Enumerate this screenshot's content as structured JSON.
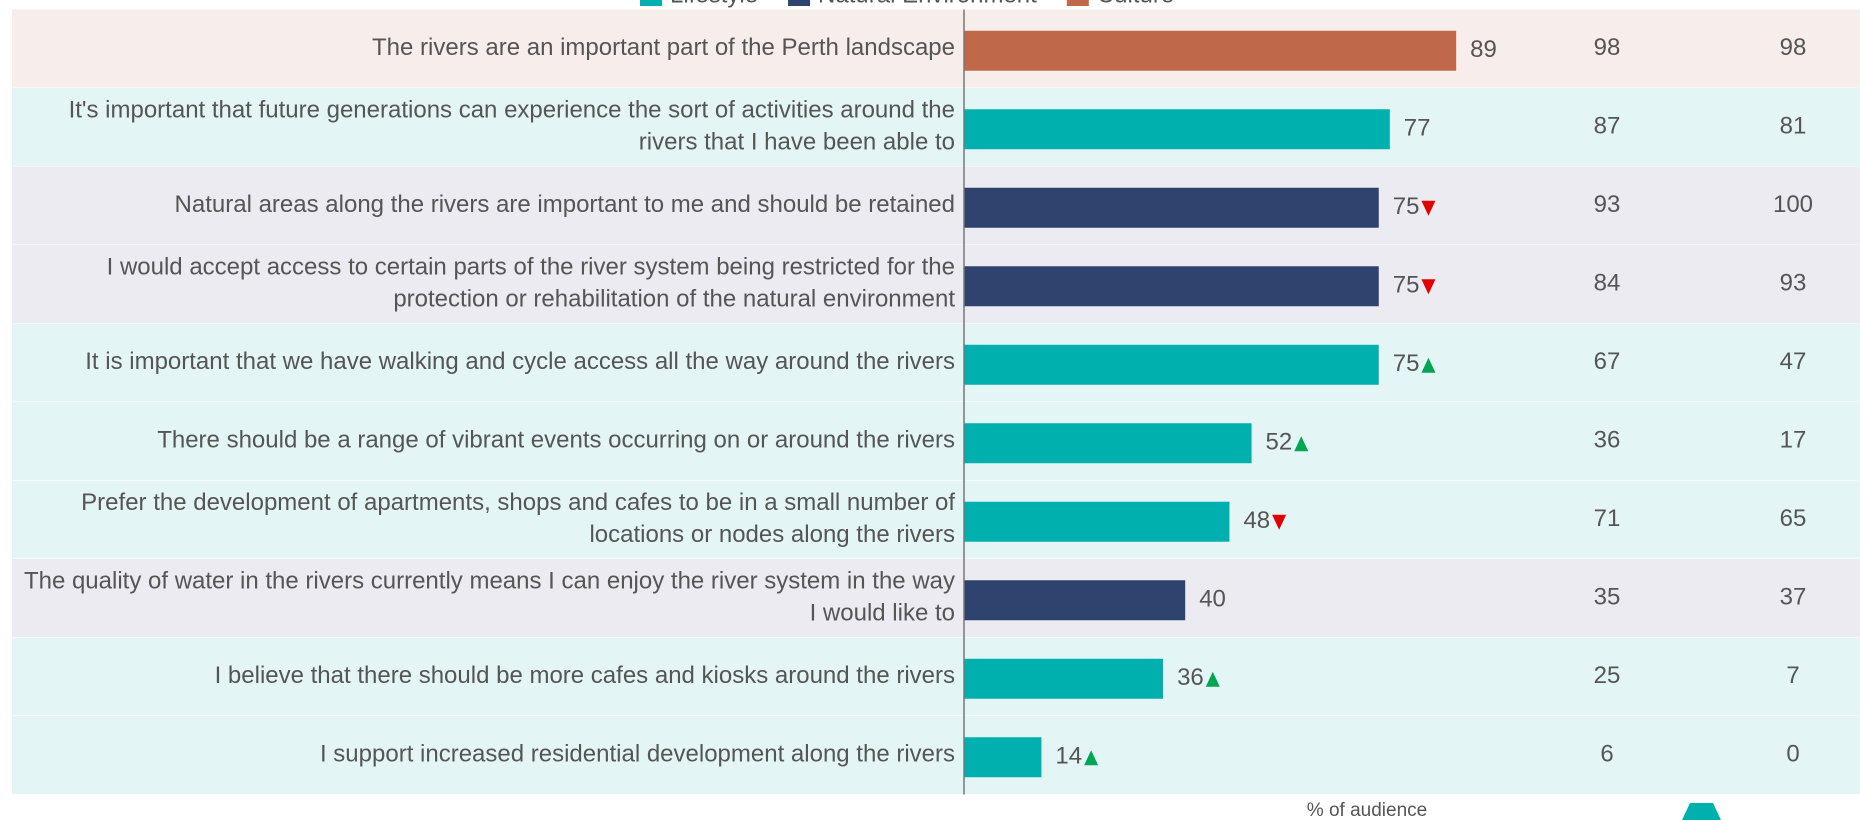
{
  "chart_data": {
    "type": "bar",
    "orientation": "horizontal",
    "legend": [
      {
        "name": "Lifestyle",
        "color": "#00b0ae",
        "row_color": "#e4f5f5"
      },
      {
        "name": "Natural Environment",
        "color": "#2e446e",
        "row_color": "#ebebf1"
      },
      {
        "name": "Culture",
        "color": "#c0694a",
        "row_color": "#f7eeec"
      }
    ],
    "categories": [
      "The rivers are an important part of the Perth landscape",
      "It's important that future generations can experience the sort of activities around the rivers that I have been able to",
      "Natural areas along the rivers are important to me and should be retained",
      "I would accept access to certain parts of the river system being restricted for the protection or rehabilitation of the natural environment",
      "It is important that we have walking and cycle access all the way around the rivers",
      "There should be a range of vibrant events occurring on or around the rivers",
      "Prefer the development of apartments, shops and cafes to be in a small number of locations or nodes along the rivers",
      "The quality of water in the rivers currently means I can enjoy the river system in the way I would like to",
      "I believe that there should be more cafes and kiosks around the rivers",
      "I support increased residential development along the rivers"
    ],
    "groups": [
      "Culture",
      "Lifestyle",
      "Natural Environment",
      "Natural Environment",
      "Lifestyle",
      "Lifestyle",
      "Lifestyle",
      "Natural Environment",
      "Lifestyle",
      "Lifestyle"
    ],
    "values": [
      89,
      77,
      75,
      75,
      75,
      52,
      48,
      40,
      36,
      14
    ],
    "trend": [
      null,
      null,
      "down",
      "down",
      "up",
      "up",
      "down",
      null,
      "up",
      "up"
    ],
    "table_columns": [
      [
        98,
        87,
        93,
        84,
        67,
        36,
        71,
        35,
        25,
        6
      ],
      [
        98,
        81,
        100,
        93,
        47,
        17,
        65,
        37,
        7,
        0
      ]
    ],
    "xlim": [
      0,
      100
    ],
    "xlabel": "% of audience"
  }
}
